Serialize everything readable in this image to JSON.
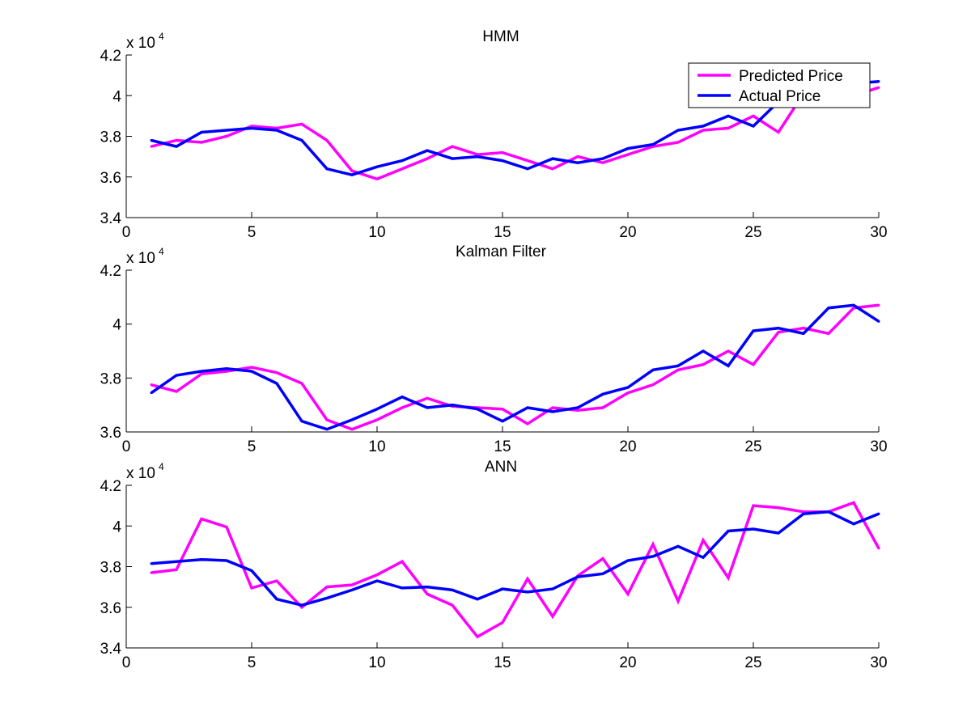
{
  "colors": {
    "predicted": "#ff00ff",
    "actual": "#0000ff",
    "axis": "#000000",
    "background": "#ffffff"
  },
  "legend": {
    "predicted_label": "Predicted Price",
    "actual_label": "Actual Price",
    "placement": "top-right of first subplot"
  },
  "chart_data": [
    {
      "type": "line",
      "title": "HMM",
      "xlabel": "",
      "ylabel": "",
      "y_scale_base": "x 10",
      "y_scale_exp": "4",
      "xlim": [
        0,
        30
      ],
      "ylim": [
        3.4,
        4.2
      ],
      "xticks": [
        0,
        5,
        10,
        15,
        20,
        25,
        30
      ],
      "yticks": [
        "3.4",
        "3.6",
        "3.8",
        "4",
        "4.2"
      ],
      "ytick_values": [
        3.4,
        3.6,
        3.8,
        4.0,
        4.2
      ],
      "grid": false,
      "legend": true,
      "x": [
        1,
        2,
        3,
        4,
        5,
        6,
        7,
        8,
        9,
        10,
        11,
        12,
        13,
        14,
        15,
        16,
        17,
        18,
        19,
        20,
        21,
        22,
        23,
        24,
        25,
        26,
        27,
        28,
        29,
        30
      ],
      "series": [
        {
          "name": "Predicted Price",
          "color": "#ff00ff",
          "values": [
            3.75,
            3.78,
            3.77,
            3.8,
            3.85,
            3.84,
            3.86,
            3.78,
            3.63,
            3.59,
            3.64,
            3.69,
            3.75,
            3.71,
            3.72,
            3.68,
            3.64,
            3.7,
            3.67,
            3.71,
            3.75,
            3.77,
            3.83,
            3.84,
            3.9,
            3.82,
            4.01,
            4.02,
            4.0,
            4.04
          ]
        },
        {
          "name": "Actual Price",
          "color": "#0000ff",
          "values": [
            3.78,
            3.75,
            3.82,
            3.83,
            3.84,
            3.83,
            3.78,
            3.64,
            3.61,
            3.65,
            3.68,
            3.73,
            3.69,
            3.7,
            3.68,
            3.64,
            3.69,
            3.67,
            3.69,
            3.74,
            3.76,
            3.83,
            3.85,
            3.9,
            3.85,
            3.97,
            3.99,
            3.96,
            4.06,
            4.07
          ]
        }
      ]
    },
    {
      "type": "line",
      "title": "Kalman Filter",
      "xlabel": "",
      "ylabel": "",
      "y_scale_base": "x 10",
      "y_scale_exp": "4",
      "xlim": [
        0,
        30
      ],
      "ylim": [
        3.6,
        4.2
      ],
      "xticks": [
        0,
        5,
        10,
        15,
        20,
        25,
        30
      ],
      "yticks": [
        "3.6",
        "3.8",
        "4",
        "4.2"
      ],
      "ytick_values": [
        3.6,
        3.8,
        4.0,
        4.2
      ],
      "grid": false,
      "legend": false,
      "x": [
        1,
        2,
        3,
        4,
        5,
        6,
        7,
        8,
        9,
        10,
        11,
        12,
        13,
        14,
        15,
        16,
        17,
        18,
        19,
        20,
        21,
        22,
        23,
        24,
        25,
        26,
        27,
        28,
        29,
        30
      ],
      "series": [
        {
          "name": "Predicted Price",
          "color": "#ff00ff",
          "values": [
            3.775,
            3.75,
            3.815,
            3.825,
            3.84,
            3.82,
            3.78,
            3.645,
            3.61,
            3.645,
            3.69,
            3.725,
            3.695,
            3.69,
            3.685,
            3.63,
            3.69,
            3.68,
            3.69,
            3.745,
            3.775,
            3.83,
            3.85,
            3.9,
            3.85,
            3.97,
            3.985,
            3.965,
            4.06,
            4.07
          ]
        },
        {
          "name": "Actual Price",
          "color": "#0000ff",
          "values": [
            3.745,
            3.81,
            3.825,
            3.835,
            3.825,
            3.78,
            3.64,
            3.61,
            3.645,
            3.685,
            3.73,
            3.69,
            3.7,
            3.685,
            3.64,
            3.69,
            3.675,
            3.69,
            3.74,
            3.765,
            3.83,
            3.845,
            3.9,
            3.845,
            3.975,
            3.985,
            3.965,
            4.06,
            4.07,
            4.01
          ]
        }
      ]
    },
    {
      "type": "line",
      "title": "ANN",
      "xlabel": "",
      "ylabel": "",
      "y_scale_base": "x 10",
      "y_scale_exp": "4",
      "xlim": [
        0,
        30
      ],
      "ylim": [
        3.4,
        4.2
      ],
      "xticks": [
        0,
        5,
        10,
        15,
        20,
        25,
        30
      ],
      "yticks": [
        "3.4",
        "3.6",
        "3.8",
        "4",
        "4.2"
      ],
      "ytick_values": [
        3.4,
        3.6,
        3.8,
        4.0,
        4.2
      ],
      "grid": false,
      "legend": false,
      "x": [
        1,
        2,
        3,
        4,
        5,
        6,
        7,
        8,
        9,
        10,
        11,
        12,
        13,
        14,
        15,
        16,
        17,
        18,
        19,
        20,
        21,
        22,
        23,
        24,
        25,
        26,
        27,
        28,
        29,
        30
      ],
      "series": [
        {
          "name": "Predicted Price",
          "color": "#ff00ff",
          "values": [
            3.77,
            3.785,
            4.035,
            3.995,
            3.695,
            3.73,
            3.6,
            3.7,
            3.71,
            3.76,
            3.825,
            3.665,
            3.61,
            3.455,
            3.525,
            3.74,
            3.555,
            3.755,
            3.84,
            3.665,
            3.91,
            3.63,
            3.93,
            3.745,
            4.1,
            4.09,
            4.07,
            4.07,
            4.115,
            3.89
          ]
        },
        {
          "name": "Actual Price",
          "color": "#0000ff",
          "values": [
            3.815,
            3.825,
            3.835,
            3.83,
            3.78,
            3.64,
            3.61,
            3.645,
            3.685,
            3.73,
            3.695,
            3.7,
            3.685,
            3.64,
            3.69,
            3.675,
            3.69,
            3.75,
            3.765,
            3.83,
            3.85,
            3.9,
            3.845,
            3.975,
            3.985,
            3.965,
            4.06,
            4.07,
            4.01,
            4.06
          ]
        }
      ]
    }
  ]
}
